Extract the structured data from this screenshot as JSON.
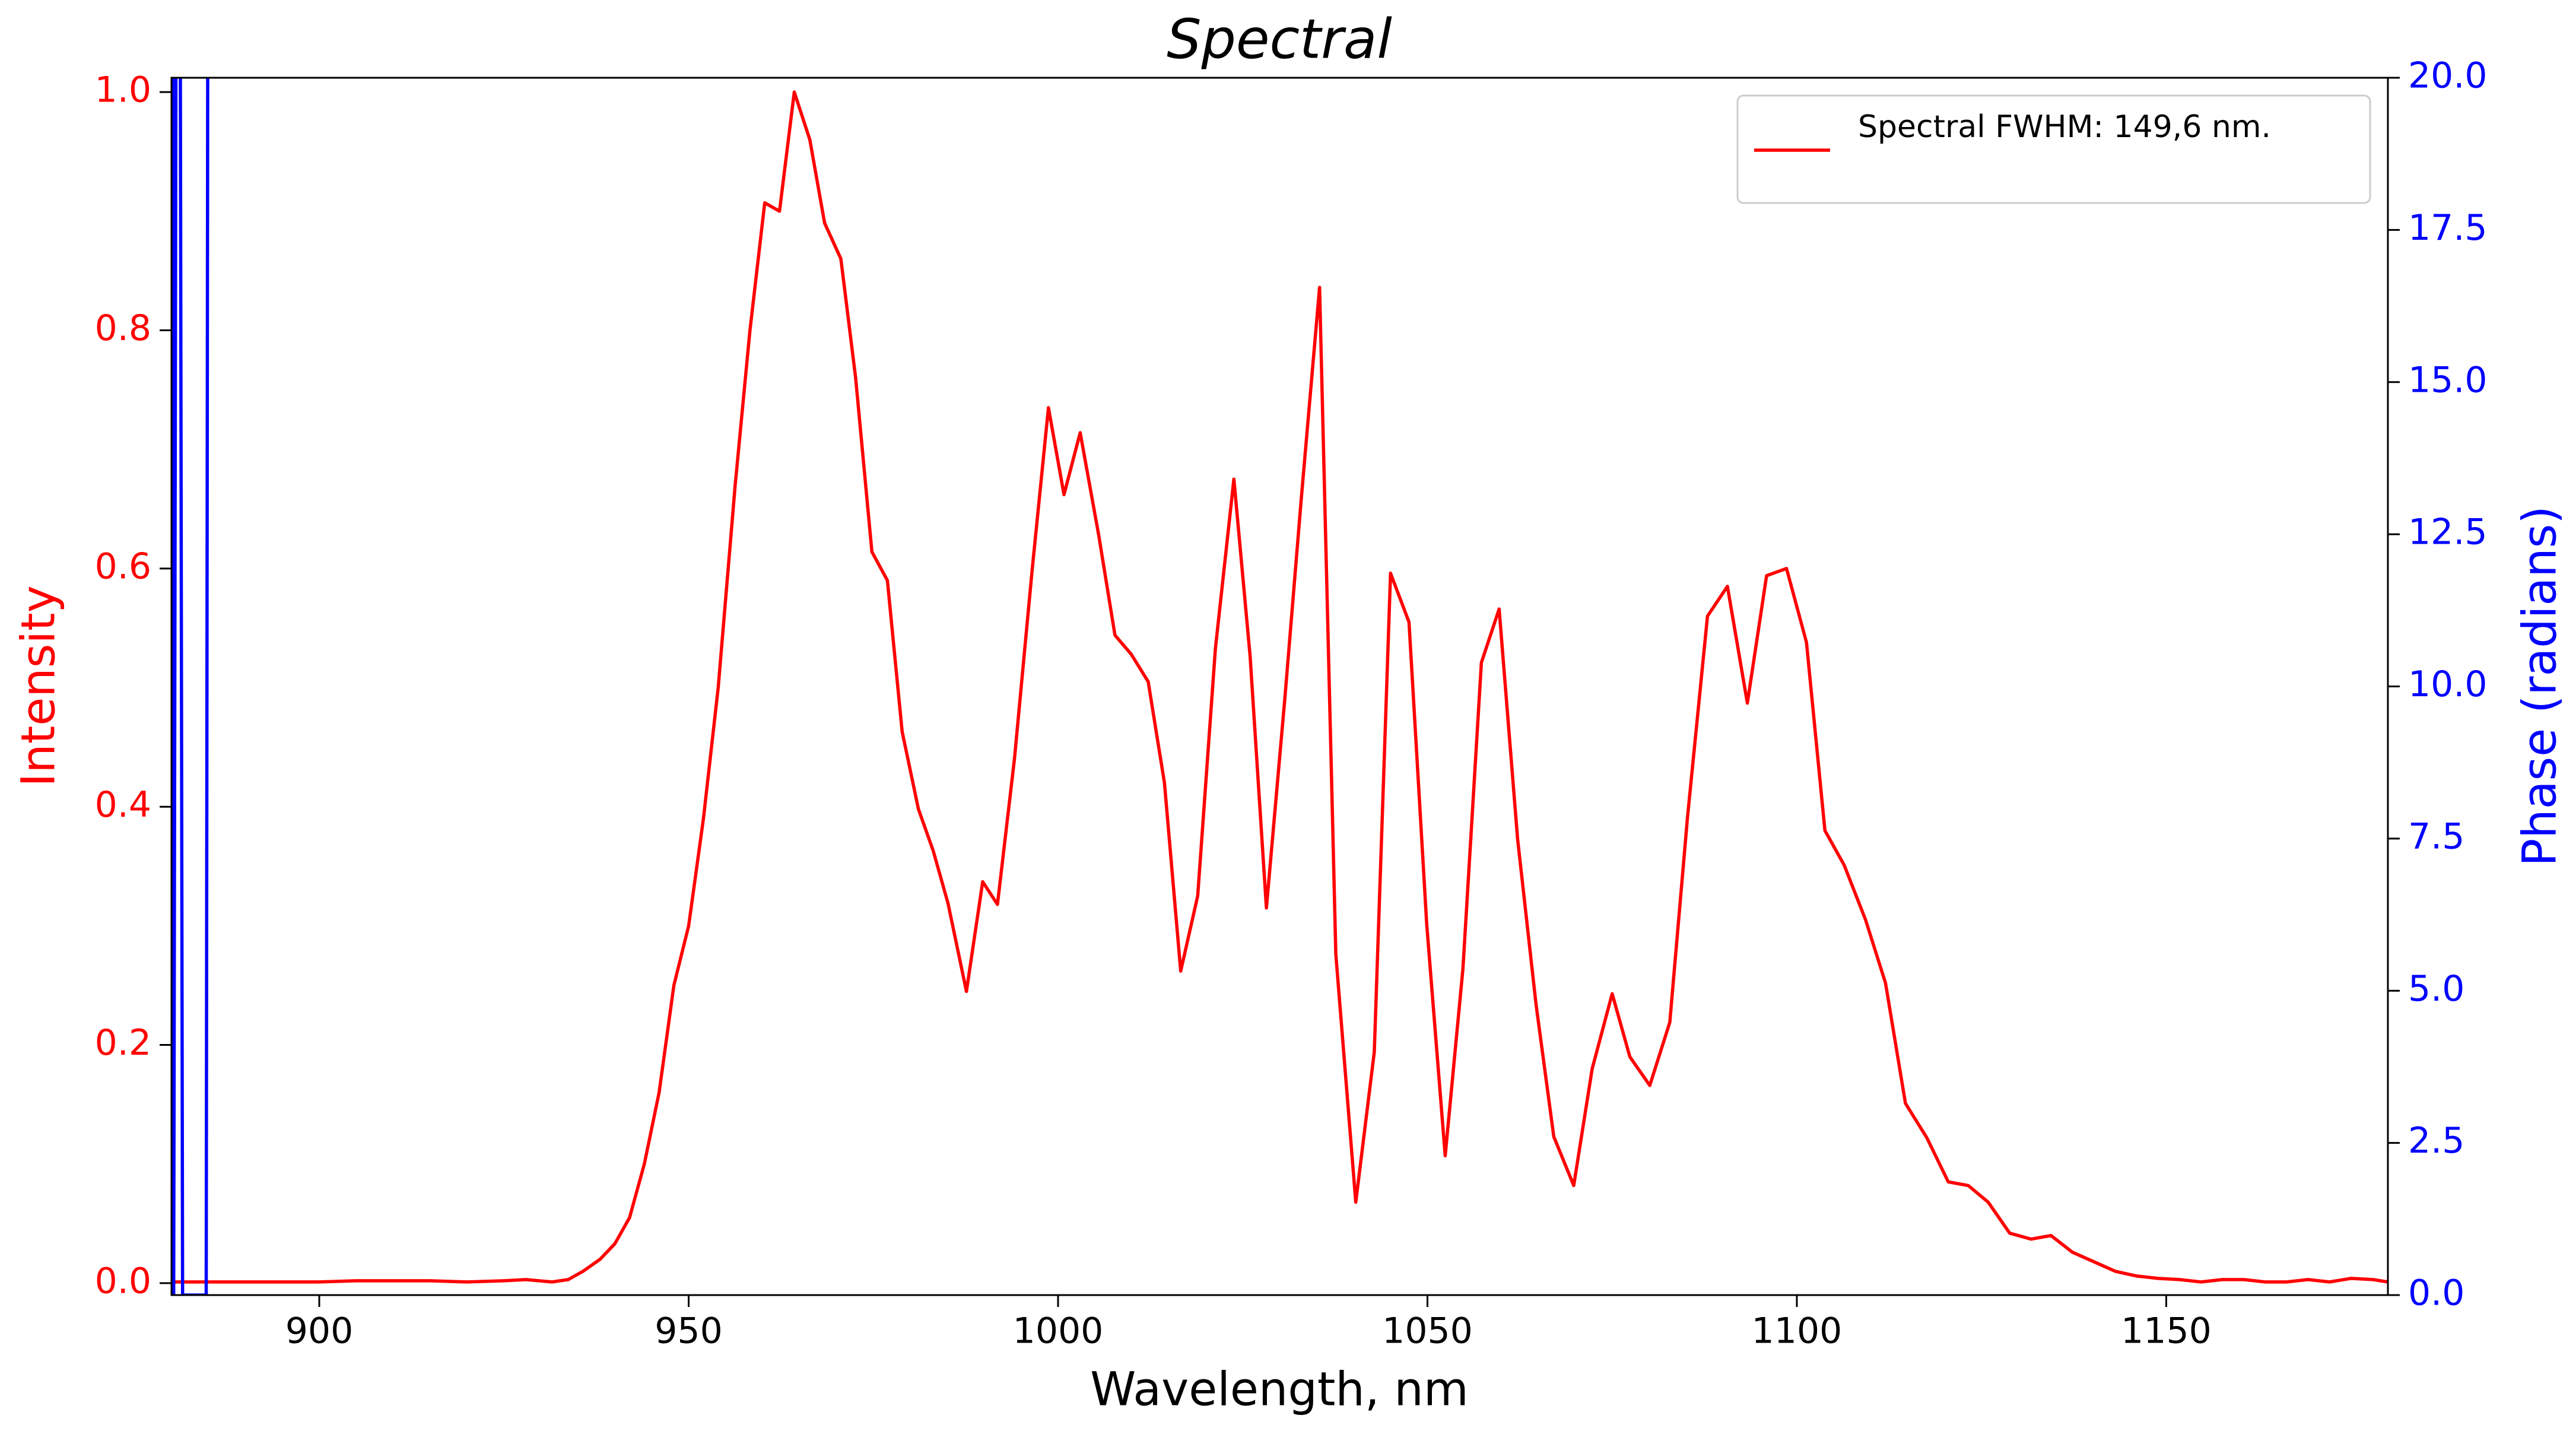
{
  "chart_data": {
    "type": "line",
    "title": "Spectral",
    "x_label": "Wavelength, nm",
    "y_label": "Intensity",
    "y2_label": "Phase (radians)",
    "xlim": [
      880,
      1180
    ],
    "ylim": [
      -0.01,
      1.012
    ],
    "y2lim": [
      0,
      20
    ],
    "xticks": [
      900,
      950,
      1000,
      1050,
      1100,
      1150
    ],
    "yticks": [
      {
        "value": 0,
        "label": "0.0"
      },
      {
        "value": 0.2,
        "label": "0.2"
      },
      {
        "value": 0.4,
        "label": "0.4"
      },
      {
        "value": 0.6,
        "label": "0.6"
      },
      {
        "value": 0.8,
        "label": "0.8"
      },
      {
        "value": 1.0,
        "label": "1.0"
      }
    ],
    "y2ticks": [
      {
        "value": 0,
        "label": "0.0"
      },
      2.5,
      {
        "value": 5,
        "label": "5.0"
      },
      7.5,
      {
        "value": 10,
        "label": "10.0"
      },
      12.5,
      {
        "value": 15,
        "label": "15.0"
      },
      17.5,
      {
        "value": 20,
        "label": "20.0"
      }
    ],
    "y_color": "#ff0000",
    "y2_color": "#0000ff",
    "legend": "upper right",
    "series": [
      {
        "name": "Spectral FWHM: 149,6 nm.",
        "color": "#ff0000",
        "x": [
          880,
          885,
          890,
          895,
          900,
          905,
          910,
          915,
          920,
          925,
          928,
          931.5,
          933.7,
          935.7,
          938,
          940,
          942,
          944,
          946,
          948,
          950,
          952,
          954,
          956.3,
          958.3,
          960.3,
          962.3,
          964.3,
          966.4,
          968.4,
          970.6,
          972.6,
          974.8,
          976.9,
          978.9,
          981.1,
          983.1,
          985.1,
          987.6,
          989.8,
          991.8,
          994.1,
          996.5,
          998.7,
          1000.8,
          1003,
          1005.5,
          1007.7,
          1009.9,
          1012.2,
          1014.4,
          1016.6,
          1018.9,
          1021.3,
          1023.8,
          1026,
          1028.2,
          1030.7,
          1032.9,
          1035.4,
          1037.6,
          1040.3,
          1042.8,
          1045,
          1047.5,
          1049.9,
          1052.4,
          1054.8,
          1057.3,
          1059.7,
          1062.2,
          1064.7,
          1067.1,
          1069.8,
          1072.3,
          1075,
          1077.4,
          1080.1,
          1082.8,
          1085.2,
          1087.9,
          1090.6,
          1093.3,
          1095.9,
          1098.6,
          1101.3,
          1103.8,
          1106.4,
          1109.3,
          1112,
          1114.7,
          1117.6,
          1120.5,
          1123.2,
          1125.9,
          1128.8,
          1131.7,
          1134.4,
          1137.3,
          1140.2,
          1143.1,
          1146,
          1148.9,
          1151.8,
          1154.7,
          1157.6,
          1160.5,
          1163.4,
          1166.3,
          1169.2,
          1172.1,
          1175,
          1178,
          1180
        ],
        "values": [
          0.001,
          0.001,
          0.001,
          0.001,
          0.001,
          0.002,
          0.002,
          0.002,
          0.001,
          0.002,
          0.003,
          0.001,
          0.003,
          0.01,
          0.02,
          0.033,
          0.055,
          0.1,
          0.16,
          0.25,
          0.3,
          0.39,
          0.5,
          0.67,
          0.8,
          0.907,
          0.9,
          1.0,
          0.96,
          0.89,
          0.86,
          0.76,
          0.614,
          0.59,
          0.463,
          0.398,
          0.363,
          0.319,
          0.245,
          0.337,
          0.318,
          0.44,
          0.599,
          0.735,
          0.662,
          0.714,
          0.628,
          0.544,
          0.528,
          0.505,
          0.42,
          0.262,
          0.325,
          0.533,
          0.675,
          0.526,
          0.315,
          0.491,
          0.657,
          0.836,
          0.276,
          0.068,
          0.194,
          0.596,
          0.555,
          0.301,
          0.107,
          0.264,
          0.521,
          0.566,
          0.373,
          0.234,
          0.123,
          0.082,
          0.18,
          0.243,
          0.19,
          0.166,
          0.219,
          0.391,
          0.56,
          0.585,
          0.487,
          0.594,
          0.6,
          0.538,
          0.38,
          0.351,
          0.305,
          0.252,
          0.151,
          0.122,
          0.085,
          0.082,
          0.068,
          0.042,
          0.037,
          0.04,
          0.026,
          0.018,
          0.01,
          0.006,
          0.004,
          0.003,
          0.001,
          0.003,
          0.003,
          0.001,
          0.001,
          0.003,
          0.001,
          0.004,
          0.003,
          0.001
        ]
      },
      {
        "color": "#0000ff",
        "axis": "y2",
        "x": [
          880.0,
          880.3,
          880.9,
          881.5,
          884.7,
          885.1
        ],
        "values": [
          40,
          0,
          40,
          0,
          0,
          40
        ]
      }
    ]
  }
}
